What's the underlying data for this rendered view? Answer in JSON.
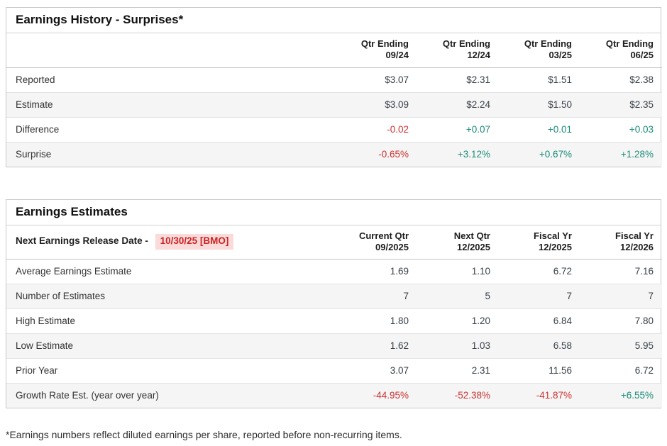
{
  "colors": {
    "positive": "#1a8c78",
    "negative": "#cc3333",
    "highlight_bg": "#fbdada",
    "highlight_text": "#cc2222"
  },
  "surprises_table": {
    "title": "Earnings History - Surprises*",
    "columns": [
      {
        "line1": "Qtr Ending",
        "line2": "09/24"
      },
      {
        "line1": "Qtr Ending",
        "line2": "12/24"
      },
      {
        "line1": "Qtr Ending",
        "line2": "03/25"
      },
      {
        "line1": "Qtr Ending",
        "line2": "06/25"
      }
    ],
    "rows": [
      {
        "label": "Reported",
        "values": [
          "$3.07",
          "$2.31",
          "$1.51",
          "$2.38"
        ],
        "tones": [
          "",
          "",
          "",
          ""
        ]
      },
      {
        "label": "Estimate",
        "values": [
          "$3.09",
          "$2.24",
          "$1.50",
          "$2.35"
        ],
        "tones": [
          "",
          "",
          "",
          ""
        ]
      },
      {
        "label": "Difference",
        "values": [
          "-0.02",
          "+0.07",
          "+0.01",
          "+0.03"
        ],
        "tones": [
          "neg",
          "pos",
          "pos",
          "pos"
        ]
      },
      {
        "label": "Surprise",
        "values": [
          "-0.65%",
          "+3.12%",
          "+0.67%",
          "+1.28%"
        ],
        "tones": [
          "neg",
          "pos",
          "pos",
          "pos"
        ]
      }
    ]
  },
  "estimates_table": {
    "title": "Earnings Estimates",
    "release_label": "Next Earnings Release Date -",
    "release_date": "10/30/25 [BMO]",
    "columns": [
      {
        "line1": "Current Qtr",
        "line2": "09/2025"
      },
      {
        "line1": "Next Qtr",
        "line2": "12/2025"
      },
      {
        "line1": "Fiscal Yr",
        "line2": "12/2025"
      },
      {
        "line1": "Fiscal Yr",
        "line2": "12/2026"
      }
    ],
    "rows": [
      {
        "label": "Average Earnings Estimate",
        "values": [
          "1.69",
          "1.10",
          "6.72",
          "7.16"
        ],
        "tones": [
          "",
          "",
          "",
          ""
        ]
      },
      {
        "label": "Number of Estimates",
        "values": [
          "7",
          "5",
          "7",
          "7"
        ],
        "tones": [
          "",
          "",
          "",
          ""
        ]
      },
      {
        "label": "High Estimate",
        "values": [
          "1.80",
          "1.20",
          "6.84",
          "7.80"
        ],
        "tones": [
          "",
          "",
          "",
          ""
        ]
      },
      {
        "label": "Low Estimate",
        "values": [
          "1.62",
          "1.03",
          "6.58",
          "5.95"
        ],
        "tones": [
          "",
          "",
          "",
          ""
        ]
      },
      {
        "label": "Prior Year",
        "values": [
          "3.07",
          "2.31",
          "11.56",
          "6.72"
        ],
        "tones": [
          "",
          "",
          "",
          ""
        ]
      },
      {
        "label": "Growth Rate Est. (year over year)",
        "values": [
          "-44.95%",
          "-52.38%",
          "-41.87%",
          "+6.55%"
        ],
        "tones": [
          "neg",
          "neg",
          "neg",
          "pos"
        ]
      }
    ]
  },
  "footnote": "*Earnings numbers reflect diluted earnings per share, reported before non-recurring items."
}
